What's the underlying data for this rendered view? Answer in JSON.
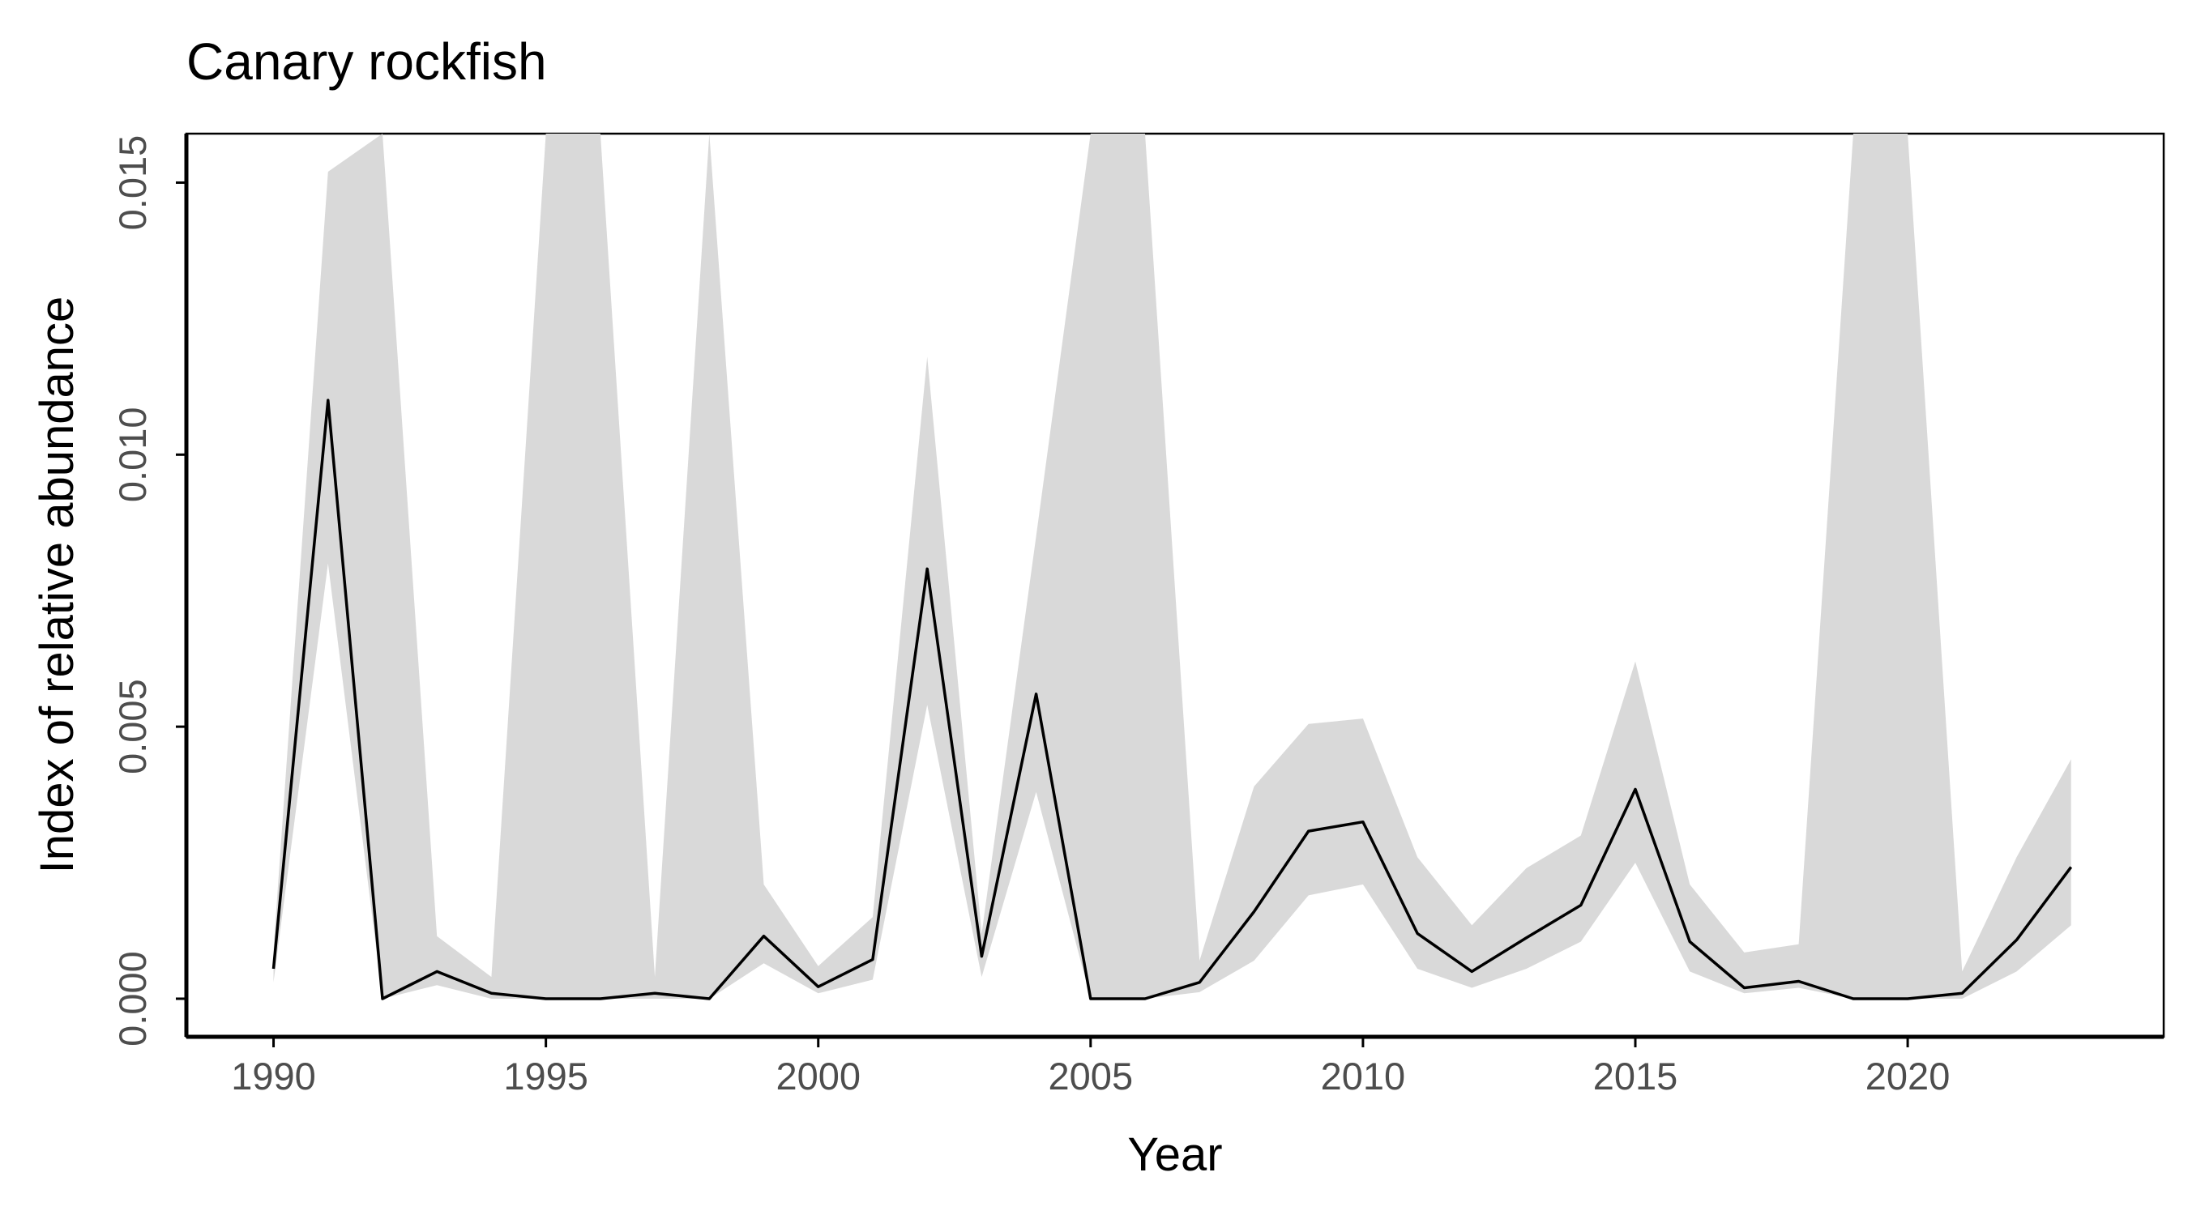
{
  "chart_data": {
    "type": "line",
    "title": "Canary rockfish",
    "xlabel": "Year",
    "ylabel": "Index of relative abundance",
    "xlim": [
      1988.4,
      2024.7
    ],
    "ylim": [
      -0.0007,
      0.0159
    ],
    "grid": false,
    "legend": "none",
    "x_ticks": [
      1990,
      1995,
      2000,
      2005,
      2010,
      2015,
      2020
    ],
    "x_tick_labels": [
      "1990",
      "1995",
      "2000",
      "2005",
      "2010",
      "2015",
      "2020"
    ],
    "y_ticks": [
      0,
      0.005,
      0.01,
      0.015
    ],
    "y_tick_labels": [
      "0.000",
      "0.005",
      "0.010",
      "0.015"
    ],
    "colors": {
      "line": "#000000",
      "ribbon": "#d9d9d9",
      "axis": "#000000",
      "tick_text": "#4d4d4d"
    },
    "x": [
      1990,
      1991,
      1992,
      1993,
      1994,
      1995,
      1996,
      1997,
      1998,
      1999,
      2000,
      2001,
      2002,
      2003,
      2004,
      2005,
      2006,
      2007,
      2008,
      2009,
      2010,
      2011,
      2012,
      2013,
      2014,
      2015,
      2016,
      2017,
      2018,
      2019,
      2020,
      2021,
      2022,
      2023
    ],
    "series": [
      {
        "values": [
          0.00055,
          0.011,
          0.0,
          0.0005,
          0.0001,
          0.0,
          0.0,
          0.0001,
          0.0,
          0.00115,
          0.00022,
          0.00072,
          0.0079,
          0.00078,
          0.0056,
          0.0,
          0.0,
          0.0003,
          0.0016,
          0.00308,
          0.00325,
          0.0012,
          0.0005,
          0.00112,
          0.00172,
          0.00385,
          0.00105,
          0.0002,
          0.00032,
          0.0,
          0.0,
          0.0001,
          0.00108,
          0.00242
        ],
        "lower": [
          0.0003,
          0.008,
          0.0,
          0.00025,
          0.0,
          0.0,
          0.0,
          0.0,
          0.0,
          0.00065,
          0.0001,
          0.00035,
          0.0054,
          0.0004,
          0.0038,
          0.0,
          0.0,
          0.00012,
          0.0007,
          0.0019,
          0.0021,
          0.00055,
          0.0002,
          0.00055,
          0.00105,
          0.0025,
          0.0005,
          0.0001,
          0.0002,
          0.0,
          0.0,
          0.0,
          0.0005,
          0.00135
        ],
        "upper": [
          0.0009,
          0.0152,
          0.0159,
          0.00115,
          0.0004,
          0.0159,
          0.0159,
          0.0004,
          0.0159,
          0.0021,
          0.0006,
          0.0015,
          0.0118,
          0.0012,
          0.0085,
          0.0159,
          0.0159,
          0.0007,
          0.0039,
          0.00505,
          0.00515,
          0.0026,
          0.00135,
          0.0024,
          0.003,
          0.0062,
          0.0021,
          0.00085,
          0.001,
          0.0159,
          0.0159,
          0.0005,
          0.0026,
          0.0044
        ]
      }
    ]
  }
}
